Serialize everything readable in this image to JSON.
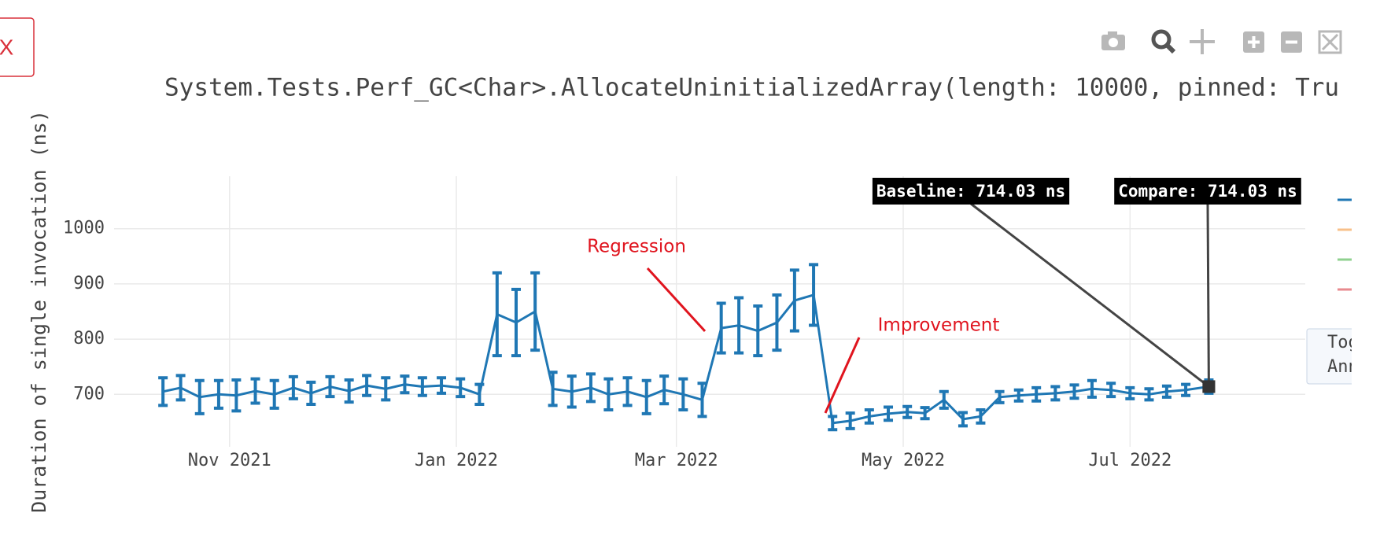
{
  "chart_data": {
    "type": "line",
    "title": "System.Tests.Perf_GC<Char>.AllocateUninitializedArray(length: 10000, pinned: Tru",
    "y_label": "Duration of single invocation (ns)",
    "close_button": "X",
    "buttons": [
      "Tog",
      "Ann"
    ],
    "legend_colors": [
      "#1f77b4",
      "#f8c08a",
      "#8fd18f",
      "#e88a8f"
    ],
    "color": "#1f77b4",
    "grid": true,
    "xlim": [
      2021.748,
      2022.625
    ],
    "ylim": [
      605,
      1095
    ],
    "xticks": [
      {
        "value": 2021.833,
        "label": "Nov 2021"
      },
      {
        "value": 2022.0,
        "label": "Jan 2022"
      },
      {
        "value": 2022.162,
        "label": "Mar 2022"
      },
      {
        "value": 2022.329,
        "label": "May 2022"
      },
      {
        "value": 2022.496,
        "label": "Jul 2022"
      }
    ],
    "yticks": [
      700,
      800,
      900,
      1000
    ],
    "x": [
      2021.784,
      2021.797,
      2021.811,
      2021.825,
      2021.838,
      2021.852,
      2021.866,
      2021.88,
      2021.893,
      2021.907,
      2021.921,
      2021.934,
      2021.948,
      2021.962,
      2021.975,
      2021.989,
      2022.003,
      2022.017,
      2022.03,
      2022.044,
      2022.058,
      2022.071,
      2022.085,
      2022.099,
      2022.112,
      2022.126,
      2022.14,
      2022.153,
      2022.167,
      2022.181,
      2022.195,
      2022.208,
      2022.222,
      2022.236,
      2022.249,
      2022.263,
      2022.277,
      2022.29,
      2022.304,
      2022.318,
      2022.332,
      2022.345,
      2022.359,
      2022.373,
      2022.386,
      2022.4,
      2022.414,
      2022.427,
      2022.441,
      2022.455,
      2022.468,
      2022.482,
      2022.496,
      2022.51,
      2022.523,
      2022.537,
      2022.554
    ],
    "values": [
      705,
      712,
      695,
      700,
      698,
      706,
      700,
      712,
      702,
      714,
      706,
      716,
      710,
      718,
      714,
      716,
      712,
      700,
      845,
      830,
      850,
      710,
      705,
      712,
      700,
      705,
      695,
      708,
      700,
      690,
      820,
      825,
      815,
      830,
      870,
      880,
      648,
      652,
      660,
      665,
      668,
      666,
      690,
      655,
      660,
      695,
      698,
      700,
      702,
      705,
      710,
      708,
      702,
      700,
      705,
      708,
      714.03
    ],
    "errors": [
      25,
      22,
      30,
      25,
      28,
      22,
      25,
      20,
      20,
      18,
      20,
      18,
      20,
      15,
      16,
      14,
      16,
      18,
      75,
      60,
      70,
      30,
      28,
      25,
      28,
      25,
      30,
      25,
      28,
      30,
      45,
      50,
      45,
      50,
      55,
      55,
      12,
      14,
      12,
      12,
      10,
      10,
      15,
      12,
      12,
      10,
      10,
      12,
      12,
      12,
      15,
      12,
      10,
      10,
      10,
      10,
      12
    ],
    "annotations": [
      {
        "text": "Regression"
      },
      {
        "text": "Improvement"
      },
      {
        "text": "Baseline: 714.03 ns",
        "x": 2022.554,
        "y": 714.03
      },
      {
        "text": "Compare: 714.03 ns",
        "x": 2022.554,
        "y": 714.03
      }
    ]
  }
}
